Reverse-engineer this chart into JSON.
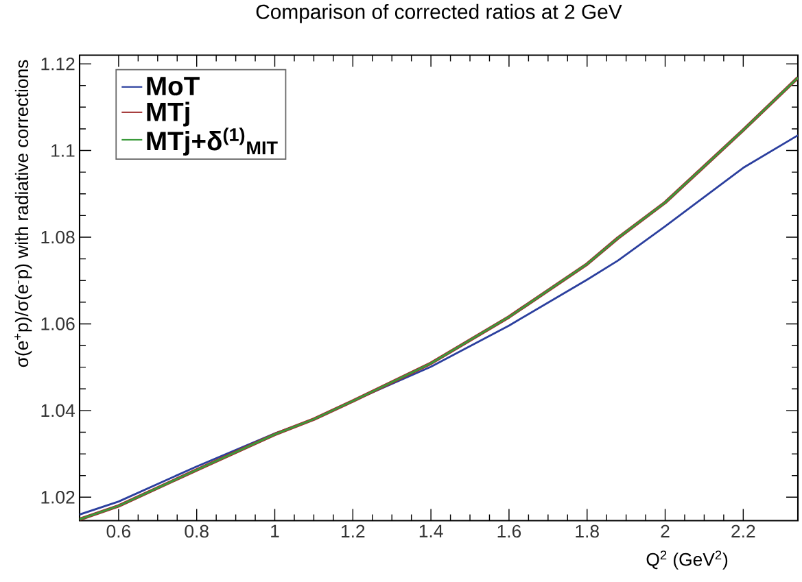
{
  "chart_data": {
    "type": "line",
    "title": "Comparison of corrected ratios at 2 GeV",
    "xlabel": "Q$^{2}$ (GeV$^{2}$)",
    "ylabel": "σ(e$^{+}$p)/σ(e$^{-}$p) with radiative corrections",
    "x": [
      0.5,
      0.6,
      0.8,
      1.0,
      1.1,
      1.2,
      1.4,
      1.6,
      1.8,
      1.879,
      2.0,
      2.2,
      2.34
    ],
    "series": [
      {
        "name": "MoT",
        "color": "#2b3f9e",
        "values": [
          1.016,
          1.019,
          1.0271,
          1.0347,
          1.038,
          1.0422,
          1.0501,
          1.0596,
          1.0702,
          1.0746,
          1.0825,
          1.096,
          1.1035
        ]
      },
      {
        "name": "MTj",
        "color": "#a03030",
        "values": [
          1.0149,
          1.018,
          1.0263,
          1.0345,
          1.038,
          1.0422,
          1.0509,
          1.0616,
          1.0738,
          1.0798,
          1.088,
          1.1047,
          1.1168
        ]
      },
      {
        "name": "MTj+δ$^{(1)}$$_{MIT}$",
        "color": "#3a9a3a",
        "values": [
          1.0149,
          1.018,
          1.0263,
          1.0345,
          1.038,
          1.0422,
          1.0509,
          1.0616,
          1.0738,
          1.0798,
          1.088,
          1.1047,
          1.1168
        ]
      }
    ],
    "xlim": [
      0.5,
      2.34
    ],
    "ylim": [
      1.0146,
      1.122
    ],
    "xticks": [
      0.6,
      0.8,
      1,
      1.2,
      1.4,
      1.6,
      1.8,
      2,
      2.2
    ],
    "yticks": [
      1.02,
      1.04,
      1.06,
      1.08,
      1.1,
      1.12
    ],
    "grid": false,
    "legend": "top left",
    "marker": "none",
    "line_style": "solid"
  }
}
